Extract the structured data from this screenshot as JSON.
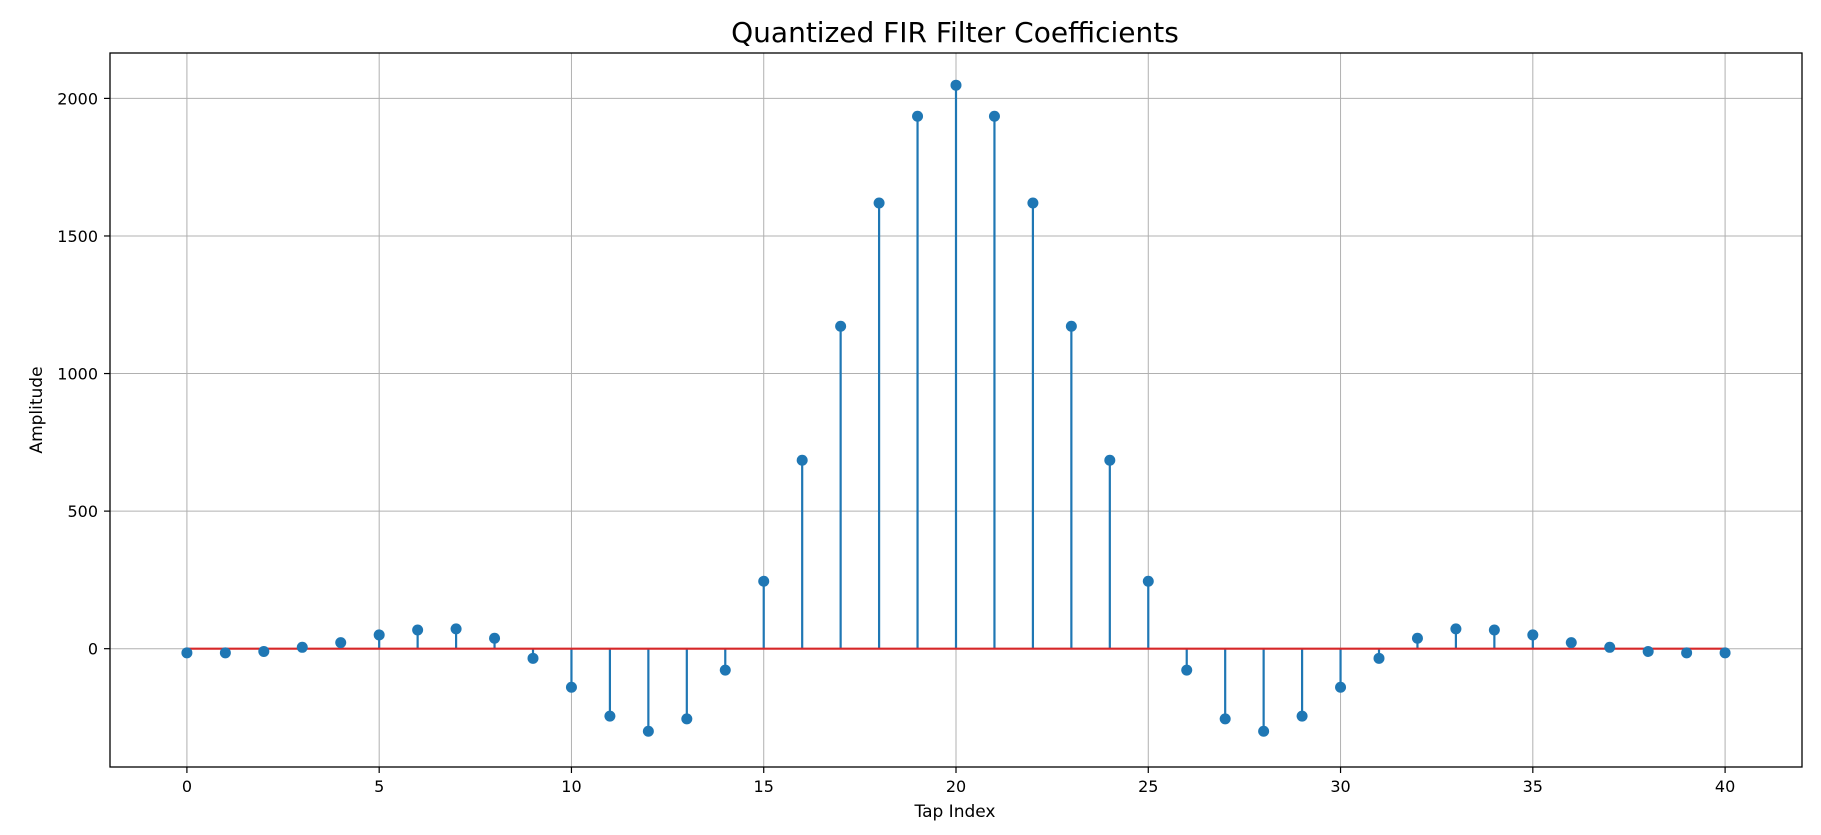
{
  "chart_data": {
    "type": "stem",
    "title": "Quantized FIR Filter Coefficients",
    "xlabel": "Tap Index",
    "ylabel": "Amplitude",
    "xlim": [
      -2,
      42
    ],
    "ylim": [
      -430,
      2165
    ],
    "xticks": [
      0,
      5,
      10,
      15,
      20,
      25,
      30,
      35,
      40
    ],
    "yticks": [
      0,
      500,
      1000,
      1500,
      2000
    ],
    "grid": true,
    "x": [
      0,
      1,
      2,
      3,
      4,
      5,
      6,
      7,
      8,
      9,
      10,
      11,
      12,
      13,
      14,
      15,
      16,
      17,
      18,
      19,
      20,
      21,
      22,
      23,
      24,
      25,
      26,
      27,
      28,
      29,
      30,
      31,
      32,
      33,
      34,
      35,
      36,
      37,
      38,
      39,
      40
    ],
    "values": [
      -15,
      -15,
      -10,
      5,
      22,
      50,
      68,
      72,
      38,
      -35,
      -140,
      -245,
      -300,
      -255,
      -78,
      245,
      685,
      1172,
      1620,
      1935,
      2048,
      1935,
      1620,
      1172,
      685,
      245,
      -78,
      -255,
      -300,
      -245,
      -140,
      -35,
      38,
      72,
      68,
      50,
      22,
      5,
      -10,
      -15,
      -15
    ],
    "colors": {
      "stem": "#1f77b4",
      "marker": "#1f77b4",
      "baseline": "#d62728",
      "grid": "#b0b0b0",
      "axes": "#000000"
    }
  }
}
